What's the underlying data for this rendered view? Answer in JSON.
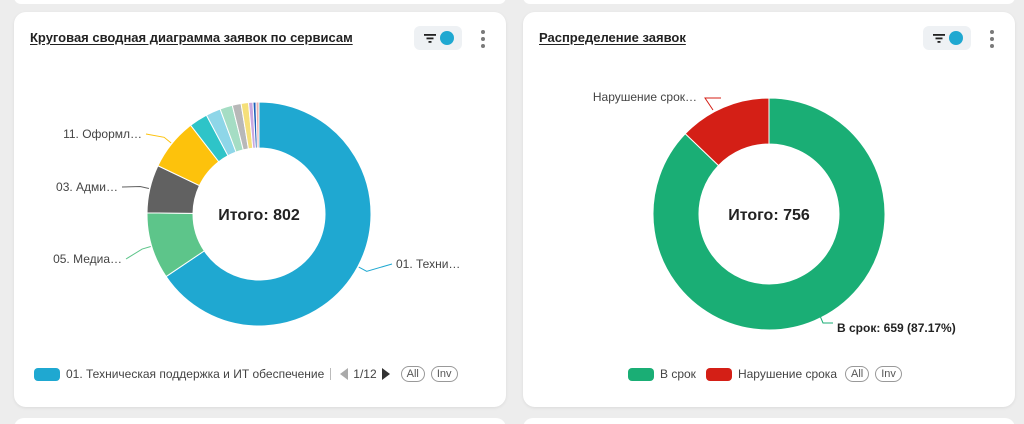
{
  "colors": {
    "tech": "#1fa8d1",
    "media": "#5dc58a",
    "admin": "#616161",
    "oform": "#fdc20c",
    "ok": "#1aae75",
    "violation": "#d41f16"
  },
  "left_card": {
    "title": "Круговая сводная диаграмма заявок по сервисам",
    "center_label": "Итого: 802",
    "labels": {
      "tech": "01. Техни…",
      "media": "05. Медиа…",
      "admin": "03. Адми…",
      "oform": "11. Оформл…"
    },
    "legend": {
      "item": "01. Техническая поддержка и ИТ обеспечение",
      "pager": "1/12",
      "all": "All",
      "inv": "Inv"
    }
  },
  "right_card": {
    "title": "Распределение заявок",
    "center_label": "Итого: 756",
    "labels": {
      "violation": "Нарушение срок…",
      "ok": "В срок: 659 (87.17%)"
    },
    "legend": {
      "ok": "В срок",
      "violation": "Нарушение срока",
      "all": "All",
      "inv": "Inv"
    }
  },
  "chart_data": [
    {
      "type": "pie",
      "title": "Круговая сводная диаграмма заявок по сервисам",
      "total": 802,
      "slices": [
        {
          "name": "01. Техническая поддержка и ИТ обеспечение",
          "share": 0.615,
          "color": "#1fa8d1"
        },
        {
          "name": "05. Медиа…",
          "share": 0.09,
          "color": "#5dc58a"
        },
        {
          "name": "03. Адми…",
          "share": 0.065,
          "color": "#616161"
        },
        {
          "name": "11. Оформл…",
          "share": 0.07,
          "color": "#fdc20c"
        },
        {
          "name": "",
          "share": 0.025,
          "color": "#2ec4c8"
        },
        {
          "name": "",
          "share": 0.02,
          "color": "#8ed6e8"
        },
        {
          "name": "",
          "share": 0.017,
          "color": "#a5ddc4"
        },
        {
          "name": "",
          "share": 0.012,
          "color": "#b8b8b8"
        },
        {
          "name": "",
          "share": 0.01,
          "color": "#f5e07a"
        },
        {
          "name": "",
          "share": 0.006,
          "color": "#c9a8e0"
        },
        {
          "name": "",
          "share": 0.004,
          "color": "#1d5fb8"
        },
        {
          "name": "",
          "share": 0.004,
          "color": "#e8b0b0"
        }
      ],
      "legend_placement": "bottom"
    },
    {
      "type": "pie",
      "title": "Распределение заявок",
      "total": 756,
      "slices": [
        {
          "name": "В срок",
          "value": 659,
          "percent": 87.17,
          "color": "#1aae75"
        },
        {
          "name": "Нарушение срока",
          "value": 97,
          "percent": 12.83,
          "color": "#d41f16"
        }
      ],
      "legend_placement": "bottom"
    }
  ]
}
